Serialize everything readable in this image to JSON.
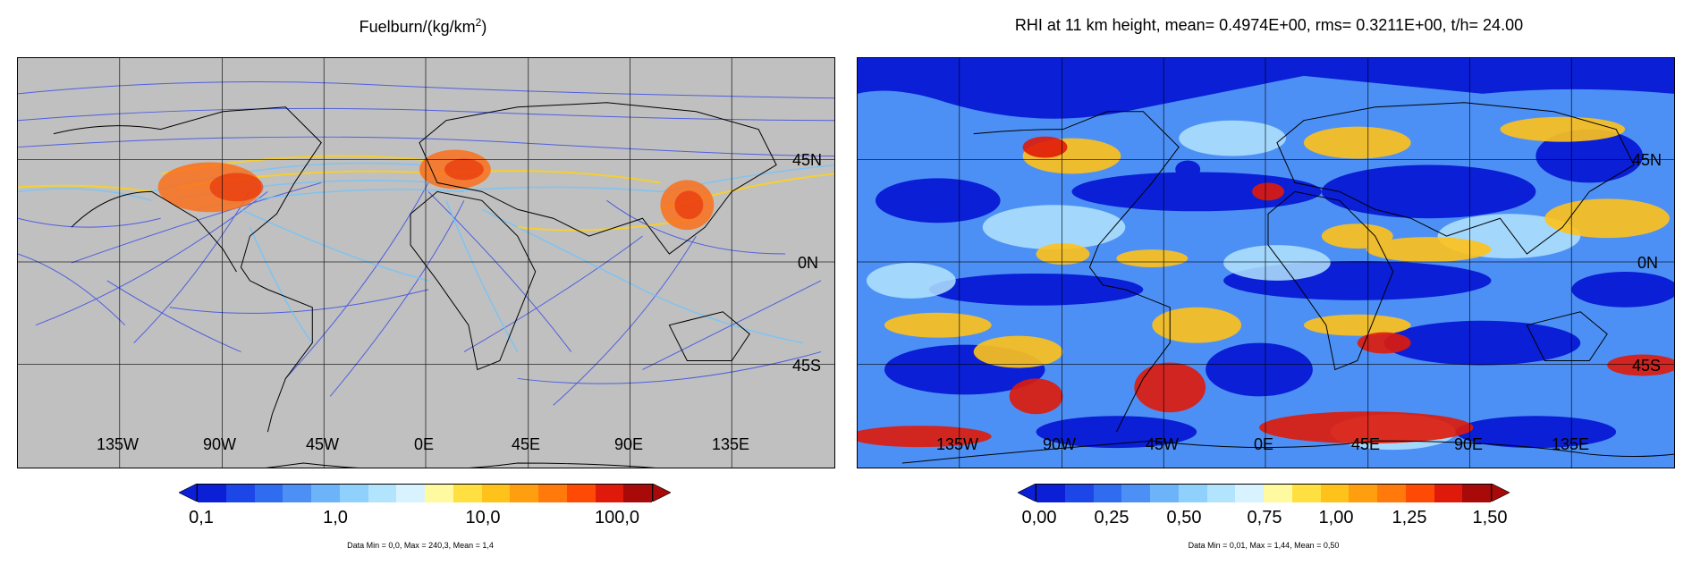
{
  "left_panel": {
    "title_main": "Fuelburn/(kg/km",
    "title_sup": "2",
    "title_end": ")",
    "background_color": "#c0c0c0",
    "lat_labels": [
      "45N",
      "0N",
      "45S"
    ],
    "lon_labels": [
      "135W",
      "90W",
      "45W",
      "0E",
      "45E",
      "90E",
      "135E"
    ],
    "colorbar": {
      "colors": [
        "#0a1fd6",
        "#1c46e8",
        "#2f6cf0",
        "#4d90f5",
        "#6db3fa",
        "#8fd0fc",
        "#b3e4fd",
        "#d9f2ff",
        "#fff9a0",
        "#ffe040",
        "#ffc21a",
        "#ff9f10",
        "#ff7a0a",
        "#ff4a05",
        "#e01a0a",
        "#a80a0a"
      ],
      "under_color": "#0a1fd6",
      "over_color": "#a80a0a",
      "tick_labels": [
        "0,1",
        "1,0",
        "10,0",
        "100,0"
      ]
    },
    "stats": "Data Min = 0,0, Max = 240,3, Mean = 1,4"
  },
  "right_panel": {
    "title": "RHI at 11 km height, mean= 0.4974E+00, rms= 0.3211E+00, t/h= 24.00",
    "background_color": "#4aa0f0",
    "lat_labels": [
      "45N",
      "0N",
      "45S"
    ],
    "lon_labels": [
      "135W",
      "90W",
      "45W",
      "0E",
      "45E",
      "90E",
      "135E"
    ],
    "colorbar": {
      "colors": [
        "#0a1fd6",
        "#1c46e8",
        "#2f6cf0",
        "#4d90f5",
        "#6db3fa",
        "#8fd0fc",
        "#b3e4fd",
        "#d9f2ff",
        "#fff9a0",
        "#ffe040",
        "#ffc21a",
        "#ff9f10",
        "#ff7a0a",
        "#ff4a05",
        "#e01a0a",
        "#a80a0a"
      ],
      "under_color": "#0a1fd6",
      "over_color": "#a80a0a",
      "tick_labels": [
        "0,00",
        "0,25",
        "0,50",
        "0,75",
        "1,00",
        "1,25",
        "1,50"
      ]
    },
    "stats": "Data Min = 0,01, Max = 1,44, Mean = 0,50"
  }
}
